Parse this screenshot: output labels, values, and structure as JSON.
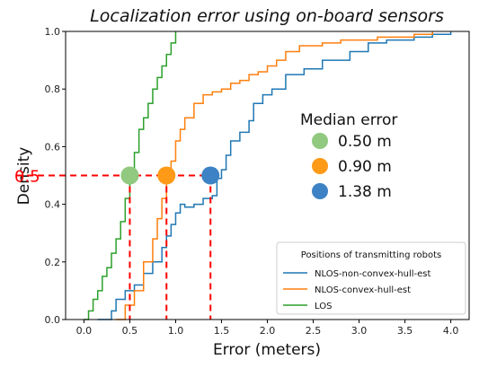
{
  "chart_data": {
    "type": "line",
    "title": "Localization error using on-board sensors",
    "xlabel": "Error (meters)",
    "ylabel": "Density",
    "xlim": [
      -0.2,
      4.2
    ],
    "ylim": [
      0.0,
      1.0
    ],
    "xticks": [
      "0.0",
      "0.5",
      "1.0",
      "1.5",
      "2.0",
      "2.5",
      "3.0",
      "3.5",
      "4.0"
    ],
    "yticks": [
      "0.0",
      "0.2",
      "0.4",
      "0.6",
      "0.8",
      "1.0"
    ],
    "grid": false,
    "highlight": {
      "y": 0.5,
      "label": "0.5",
      "color": "#ff0000"
    },
    "legend": {
      "title": "Positions of transmitting robots",
      "placement": "lower-right"
    },
    "median_legend": {
      "title": "Median error",
      "entries": [
        {
          "label": "0.50 m",
          "value": 0.5,
          "color": "#90c97f"
        },
        {
          "label": "0.90 m",
          "value": 0.9,
          "color": "#ff9a18"
        },
        {
          "label": "1.38 m",
          "value": 1.38,
          "color": "#3d82c4"
        }
      ]
    },
    "series": [
      {
        "name": "NLOS-non-convex-hull-est",
        "color": "#1f77b4",
        "x": [
          0.15,
          0.3,
          0.35,
          0.45,
          0.55,
          0.65,
          0.75,
          0.85,
          0.9,
          0.95,
          1.0,
          1.05,
          1.1,
          1.2,
          1.3,
          1.4,
          1.45,
          1.5,
          1.55,
          1.6,
          1.7,
          1.8,
          1.85,
          1.95,
          2.05,
          2.2,
          2.4,
          2.6,
          2.9,
          3.1,
          3.3,
          3.6,
          3.8,
          4.0
        ],
        "y": [
          0.0,
          0.03,
          0.07,
          0.1,
          0.12,
          0.16,
          0.2,
          0.25,
          0.29,
          0.33,
          0.37,
          0.4,
          0.39,
          0.4,
          0.42,
          0.43,
          0.49,
          0.52,
          0.57,
          0.62,
          0.65,
          0.69,
          0.75,
          0.78,
          0.8,
          0.85,
          0.87,
          0.9,
          0.93,
          0.96,
          0.97,
          0.98,
          0.99,
          1.0
        ]
      },
      {
        "name": "NLOS-convex-hull-est",
        "color": "#ff7f0e",
        "x": [
          0.35,
          0.45,
          0.55,
          0.65,
          0.75,
          0.8,
          0.85,
          0.9,
          0.95,
          1.0,
          1.05,
          1.1,
          1.2,
          1.3,
          1.4,
          1.5,
          1.6,
          1.7,
          1.8,
          1.9,
          2.0,
          2.1,
          2.2,
          2.35,
          2.6,
          2.8,
          3.2,
          3.6,
          3.8
        ],
        "y": [
          0.0,
          0.05,
          0.1,
          0.2,
          0.28,
          0.35,
          0.42,
          0.48,
          0.55,
          0.62,
          0.66,
          0.7,
          0.75,
          0.78,
          0.79,
          0.8,
          0.82,
          0.83,
          0.85,
          0.86,
          0.88,
          0.9,
          0.93,
          0.95,
          0.96,
          0.97,
          0.98,
          0.99,
          1.0
        ]
      },
      {
        "name": "LOS",
        "color": "#2ca02c",
        "x": [
          0.0,
          0.05,
          0.1,
          0.15,
          0.2,
          0.25,
          0.3,
          0.35,
          0.4,
          0.45,
          0.5,
          0.55,
          0.6,
          0.65,
          0.7,
          0.75,
          0.8,
          0.85,
          0.9,
          0.95,
          1.0
        ],
        "y": [
          0.0,
          0.03,
          0.07,
          0.1,
          0.15,
          0.18,
          0.23,
          0.28,
          0.34,
          0.42,
          0.5,
          0.58,
          0.66,
          0.7,
          0.75,
          0.8,
          0.84,
          0.88,
          0.92,
          0.96,
          1.0
        ]
      }
    ]
  }
}
